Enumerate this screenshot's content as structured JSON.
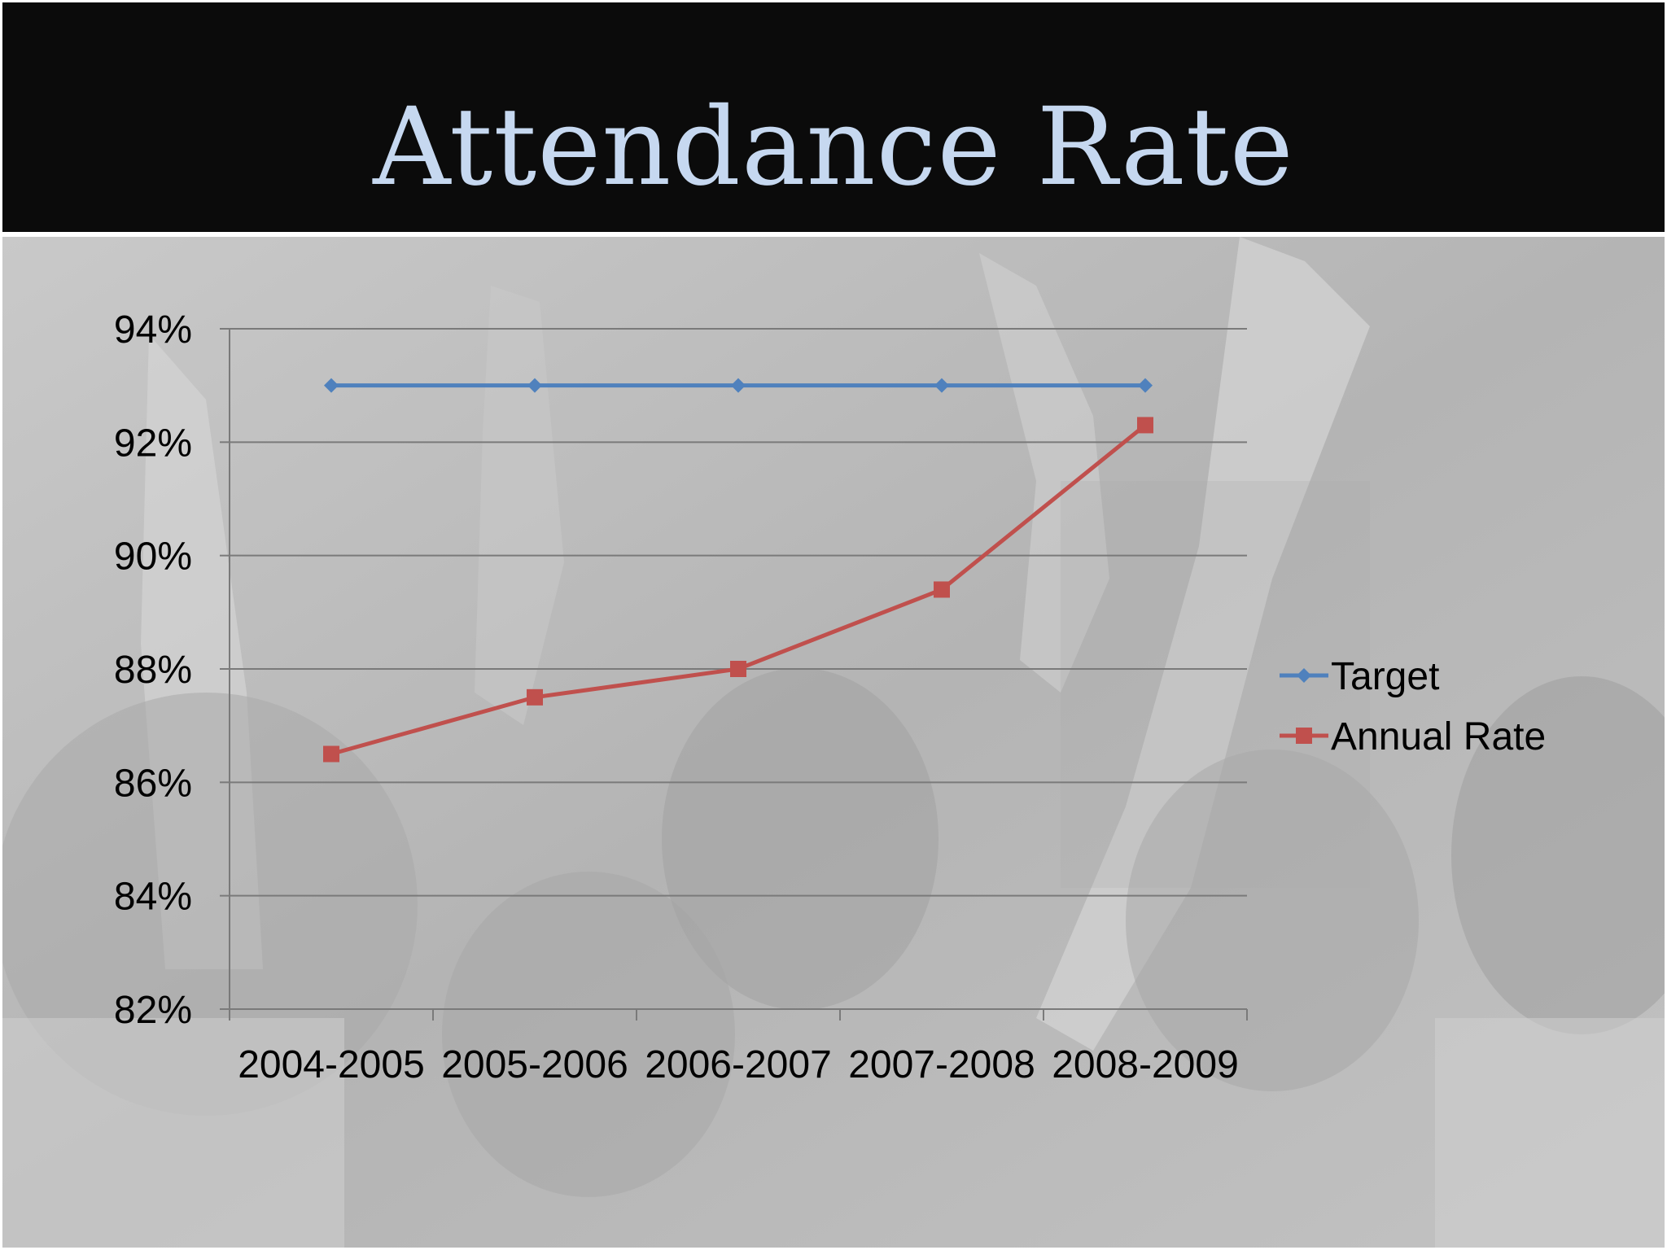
{
  "slide": {
    "title": "Attendance Rate"
  },
  "colors": {
    "title_text": "#c6d8f0",
    "target_series": "#4f81bd",
    "annual_series": "#c0504d",
    "gridline": "#7a7a7a"
  },
  "chart_data": {
    "type": "line",
    "categories": [
      "2004-2005",
      "2005-2006",
      "2006-2007",
      "2007-2008",
      "2008-2009"
    ],
    "series": [
      {
        "name": "Target",
        "values": [
          93,
          93,
          93,
          93,
          93
        ],
        "marker": "diamond",
        "color": "#4f81bd"
      },
      {
        "name": "Annual Rate",
        "values": [
          86.5,
          87.5,
          88.0,
          89.4,
          92.3
        ],
        "marker": "square",
        "color": "#c0504d"
      }
    ],
    "y_ticks": [
      82,
      84,
      86,
      88,
      90,
      92,
      94
    ],
    "y_tick_labels": [
      "82%",
      "84%",
      "86%",
      "88%",
      "90%",
      "92%",
      "94%"
    ],
    "ylim": [
      82,
      94
    ],
    "grid": true,
    "legend_position": "right"
  }
}
